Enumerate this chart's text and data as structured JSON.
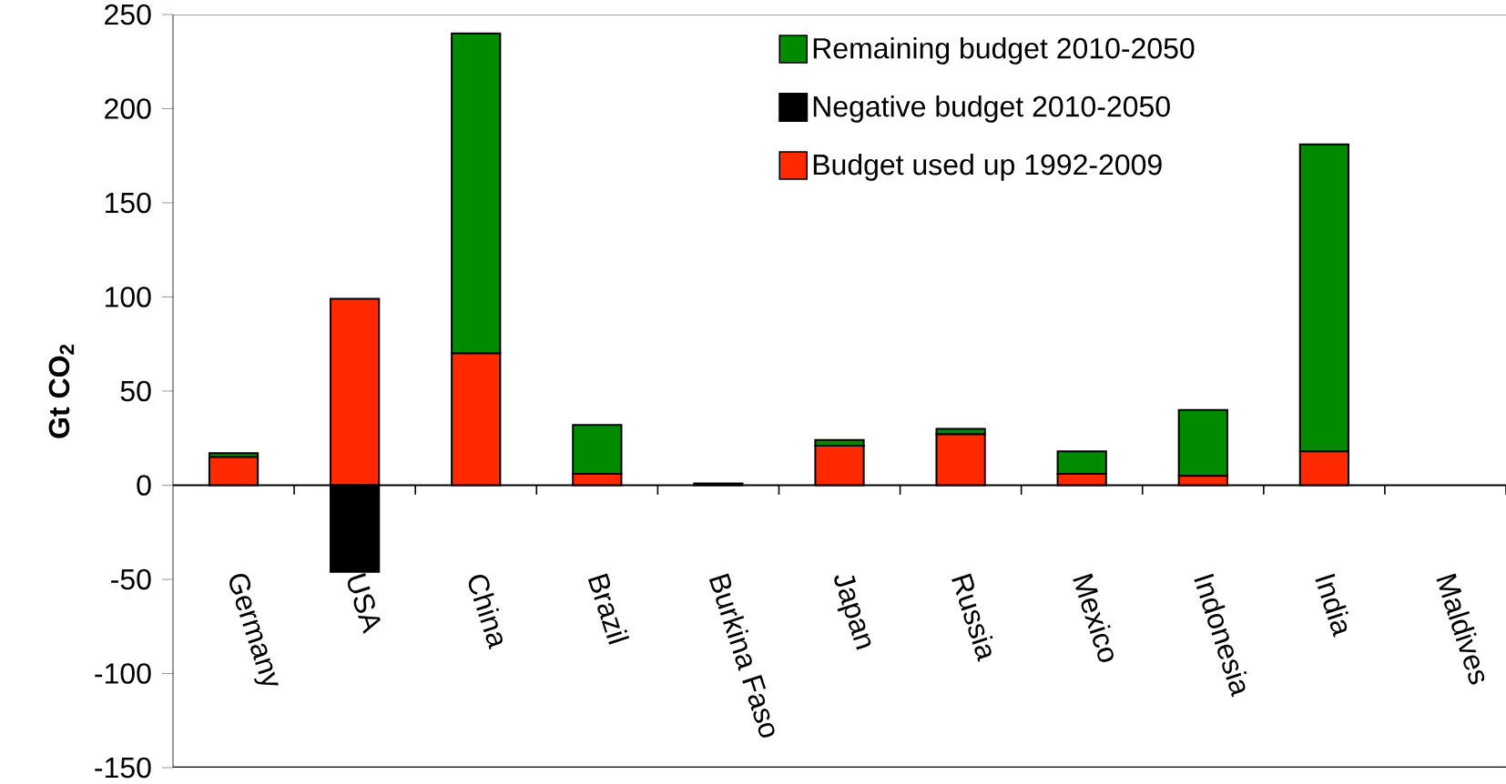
{
  "chart_data": {
    "type": "bar",
    "stacked": true,
    "ylabel": "Gt CO$_{2}$",
    "categories": [
      "Germany",
      "USA",
      "China",
      "Brazil",
      "Burkina Faso",
      "Japan",
      "Russia",
      "Mexico",
      "Indonesia",
      "India",
      "Maldives"
    ],
    "series": [
      {
        "name": "Budget used up 1992-2009",
        "color": "#ff2a00",
        "values": [
          15,
          99,
          70,
          6,
          0,
          21,
          27,
          6,
          5,
          18,
          0
        ]
      },
      {
        "name": "Remaining budget 2010-2050",
        "color": "#008a00",
        "values": [
          2,
          0,
          170,
          26,
          1,
          3,
          3,
          12,
          35,
          163,
          0
        ]
      },
      {
        "name": "Negative budget 2010-2050",
        "color": "#000000",
        "values": [
          0,
          -46,
          0,
          0,
          0,
          0,
          0,
          0,
          0,
          0,
          0
        ]
      }
    ],
    "ylim": [
      -150,
      250
    ],
    "yticks": [
      -150,
      -100,
      -50,
      0,
      50,
      100,
      150,
      200,
      250
    ],
    "legend": "top"
  }
}
